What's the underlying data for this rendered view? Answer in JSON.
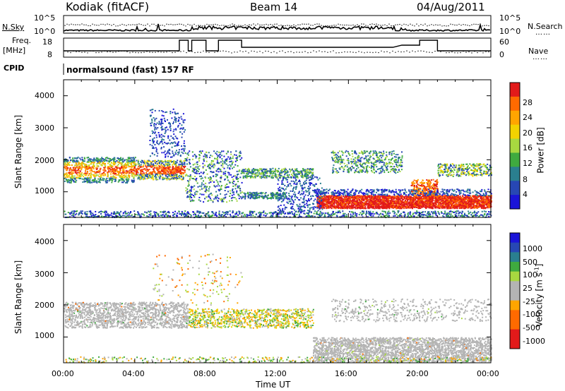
{
  "header": {
    "station": "Kodiak (fitACF)",
    "beam": "Beam 14",
    "date": "04/Aug/2011"
  },
  "top_panels": {
    "nsky_label": "N.Sky",
    "nsearch_label": "N.Search",
    "nsky_ticks_left": [
      "10^5",
      "10^0"
    ],
    "nsky_ticks_right": [
      "10^5",
      "10^0"
    ],
    "freq_label_line1": "Freq.",
    "freq_label_line2": "[MHz]",
    "freq_ticks": [
      "18",
      "8"
    ],
    "nave_label": "Nave",
    "nave_ticks": [
      "60",
      "0"
    ],
    "cpid_label": "CPID",
    "cpid_text": "normalsound (fast) 157 RF"
  },
  "colors": {
    "scale": [
      "#e21a1a",
      "#ff6a00",
      "#ffa500",
      "#f2d200",
      "#a8d840",
      "#3faa3f",
      "#2a7f8f",
      "#2747b4",
      "#1a14d8"
    ],
    "gray": "#b4b4b4"
  },
  "chart_data": [
    {
      "type": "heatmap",
      "title": "Power",
      "ylabel": "Slant Range [km]",
      "xlabel": "",
      "y_ticks": [
        "1000",
        "2000",
        "3000",
        "4000"
      ],
      "ylim": [
        200,
        4500
      ],
      "xlim": [
        0,
        24
      ],
      "colorbar_label": "Power [dB]",
      "colorbar_ticks": [
        "28",
        "24",
        "20",
        "16",
        "12",
        "8",
        "4"
      ],
      "colorbar_range": [
        0,
        32
      ]
    },
    {
      "type": "heatmap",
      "title": "Velocity",
      "ylabel": "Slant Range [km]",
      "xlabel": "Time UT",
      "x_ticks": [
        "00:00",
        "04:00",
        "08:00",
        "12:00",
        "16:00",
        "20:00",
        "00:00"
      ],
      "y_ticks": [
        "1000",
        "2000",
        "3000",
        "4000"
      ],
      "ylim": [
        200,
        4500
      ],
      "xlim": [
        0,
        24
      ],
      "colorbar_label": "Velocity [m s",
      "colorbar_label_sup": "-1",
      "colorbar_label_end": "]",
      "colorbar_ticks": [
        "1000",
        "500",
        "100",
        "25",
        "-25",
        "-100",
        "-500",
        "-1000"
      ]
    }
  ]
}
